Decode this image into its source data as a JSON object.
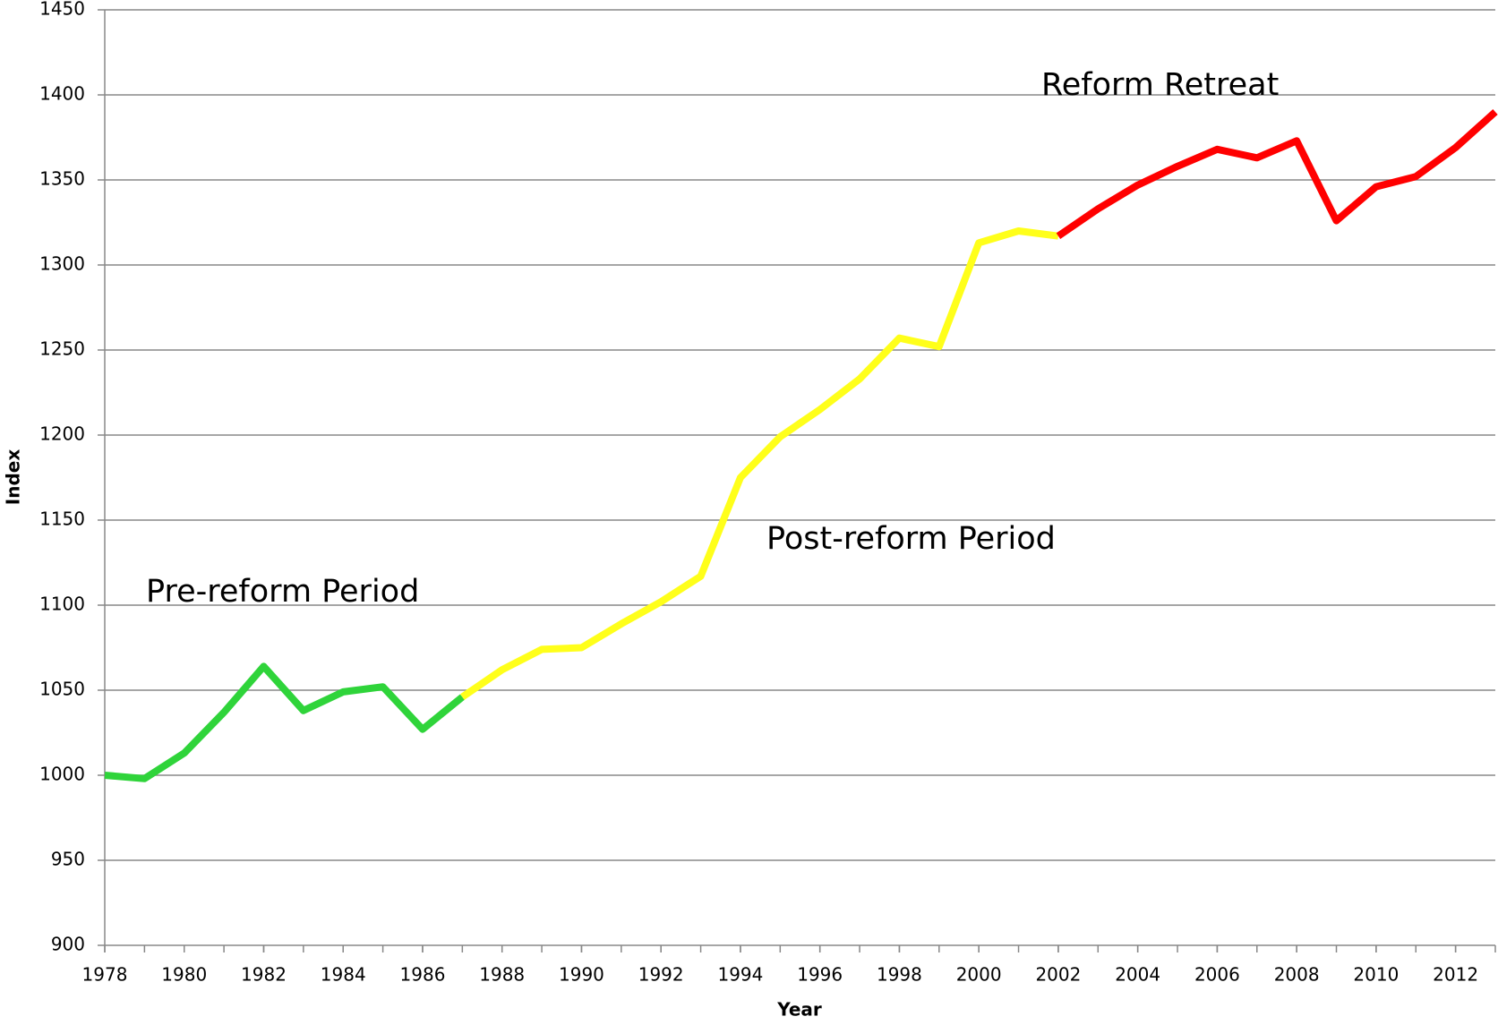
{
  "chart_data": {
    "type": "line",
    "x_label": "Year",
    "y_label": "Index",
    "x": [
      1978,
      1979,
      1980,
      1981,
      1982,
      1983,
      1984,
      1985,
      1986,
      1987,
      1988,
      1989,
      1990,
      1991,
      1992,
      1993,
      1994,
      1995,
      1996,
      1997,
      1998,
      1999,
      2000,
      2001,
      2002,
      2003,
      2004,
      2005,
      2006,
      2007,
      2008,
      2009,
      2010,
      2011,
      2012,
      2013
    ],
    "series": [
      {
        "color": "#2fd43a",
        "values": [
          1000,
          998,
          1013,
          1037,
          1064,
          1038,
          1049,
          1052,
          1027,
          1046,
          null,
          null,
          null,
          null,
          null,
          null,
          null,
          null,
          null,
          null,
          null,
          null,
          null,
          null,
          null,
          null,
          null,
          null,
          null,
          null,
          null,
          null,
          null,
          null,
          null,
          null
        ]
      },
      {
        "color": "#ffff1a",
        "values": [
          null,
          null,
          null,
          null,
          null,
          null,
          null,
          null,
          null,
          1046,
          1062,
          1074,
          1075,
          1089,
          1102,
          1117,
          1175,
          1199,
          1215,
          1233,
          1257,
          1252,
          1313,
          1320,
          1317,
          null,
          null,
          null,
          null,
          null,
          null,
          null,
          null,
          null,
          null,
          null
        ]
      },
      {
        "color": "#ff0000",
        "values": [
          null,
          null,
          null,
          null,
          null,
          null,
          null,
          null,
          null,
          null,
          null,
          null,
          null,
          null,
          null,
          null,
          null,
          null,
          null,
          null,
          null,
          null,
          null,
          null,
          1317,
          1333,
          1347,
          1358,
          1368,
          1363,
          1373,
          1326,
          1346,
          1352,
          1369,
          1390
        ]
      }
    ],
    "annotations": [
      "Pre-reform Period",
      "Post-reform Period",
      "Reform Retreat"
    ],
    "xlim": [
      1978,
      2013
    ],
    "xticks": [
      1978,
      1980,
      1982,
      1984,
      1986,
      1988,
      1990,
      1992,
      1994,
      1996,
      1998,
      2000,
      2002,
      2004,
      2006,
      2008,
      2010,
      2012
    ],
    "ylim": [
      900,
      1450
    ],
    "yticks": [
      900,
      950,
      1000,
      1050,
      1100,
      1150,
      1200,
      1250,
      1300,
      1350,
      1400,
      1450
    ],
    "grid": true
  }
}
